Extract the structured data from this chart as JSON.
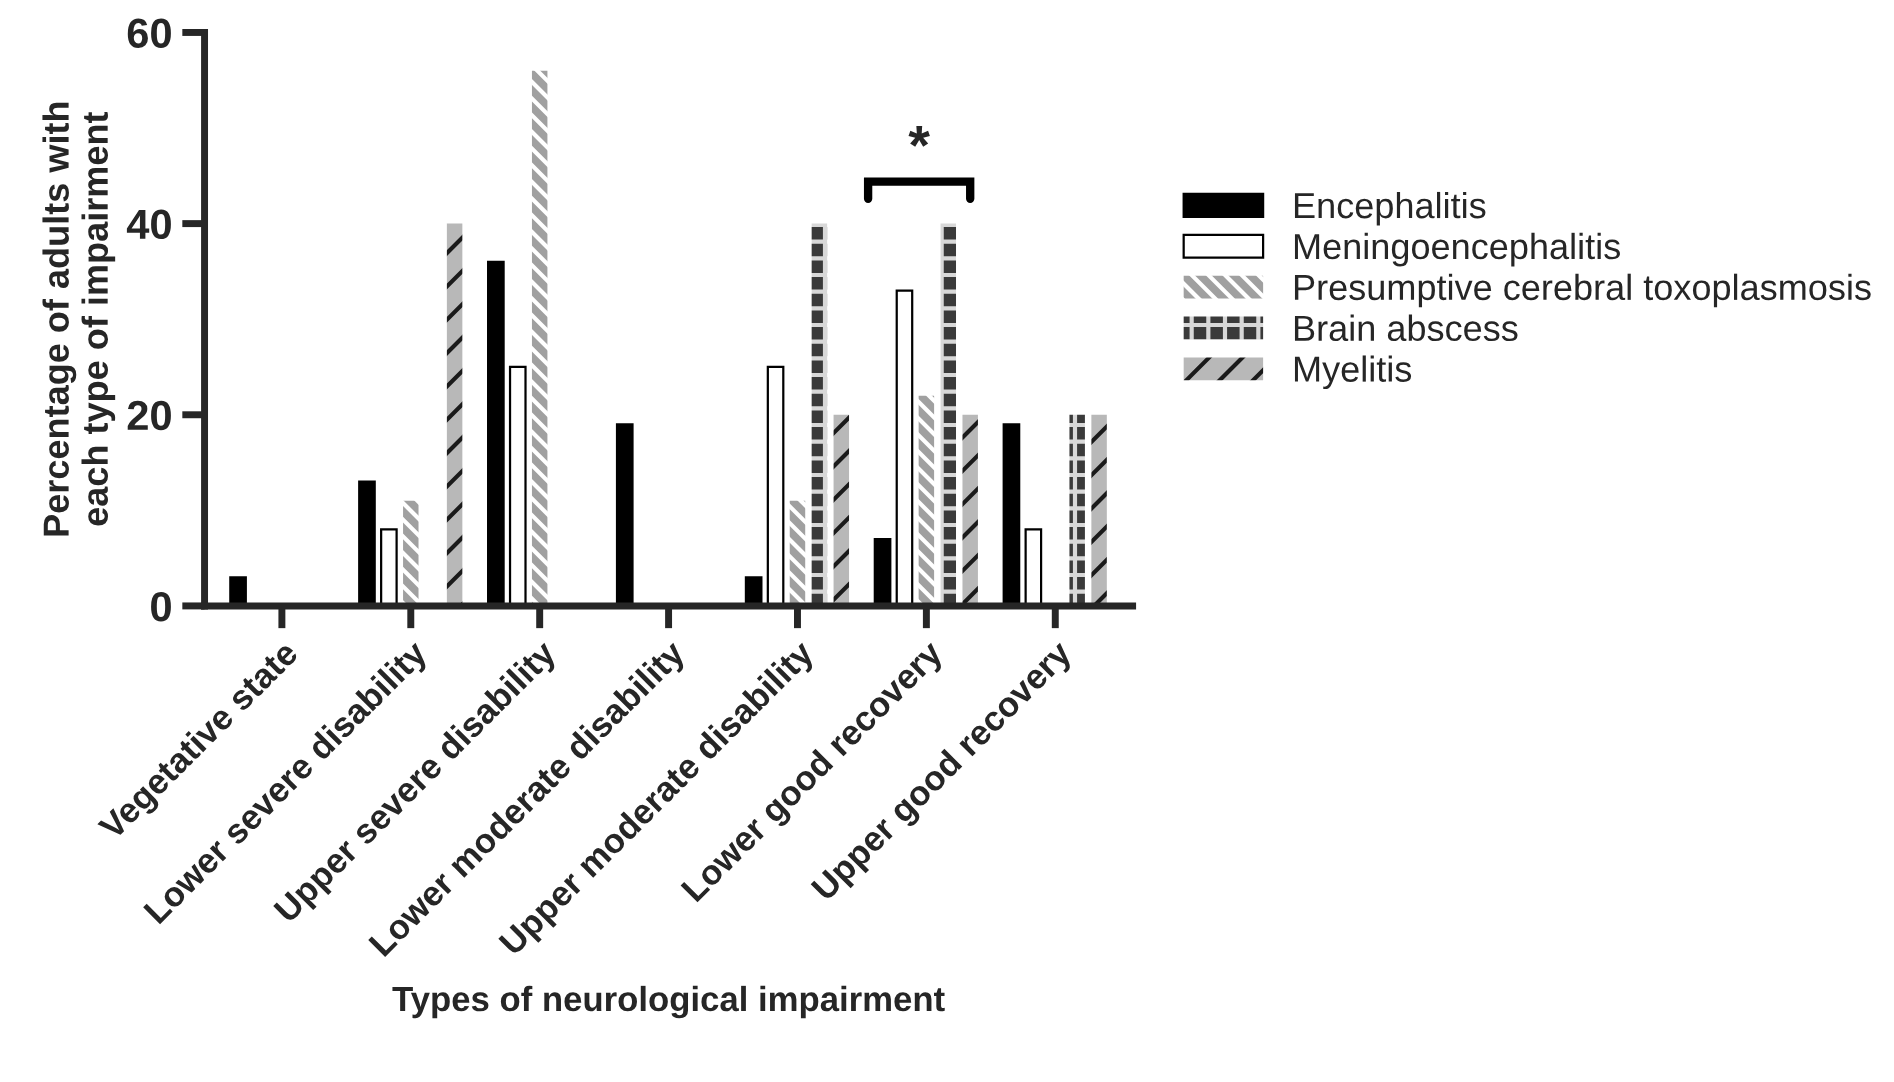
{
  "chart_data": {
    "type": "bar",
    "xlabel": "Types of neurological impairment",
    "ylabel": "Percentage of adults with\neach type of impairment",
    "categories": [
      "Vegetative state",
      "Lower severe disability",
      "Upper severe disability",
      "Lower moderate disability",
      "Upper moderate disability",
      "Lower good recovery",
      "Upper good recovery"
    ],
    "series": [
      {
        "name": "Encephalitis",
        "color": "#000000",
        "values": [
          3,
          13,
          36,
          19,
          3,
          7,
          19
        ]
      },
      {
        "name": "Meningoencephalitis",
        "color": "#ffffff",
        "values": [
          0,
          8,
          25,
          0,
          25,
          33,
          8
        ]
      },
      {
        "name": "Presumptive cerebral toxoplasmosis",
        "color": "#a0a0a0",
        "values": [
          0,
          11,
          56,
          0,
          11,
          22,
          0
        ]
      },
      {
        "name": "Brain abscess",
        "color": "#3a3a3a",
        "values": [
          0,
          0,
          0,
          0,
          40,
          40,
          20
        ]
      },
      {
        "name": "Myelitis",
        "color": "#b8b8b8",
        "values": [
          0,
          40,
          0,
          0,
          20,
          20,
          20
        ]
      }
    ],
    "ylim": [
      0,
      60
    ],
    "yticks": [
      0,
      20,
      40,
      60
    ],
    "grid": false,
    "legend": "right",
    "annotations": [
      "*"
    ]
  }
}
